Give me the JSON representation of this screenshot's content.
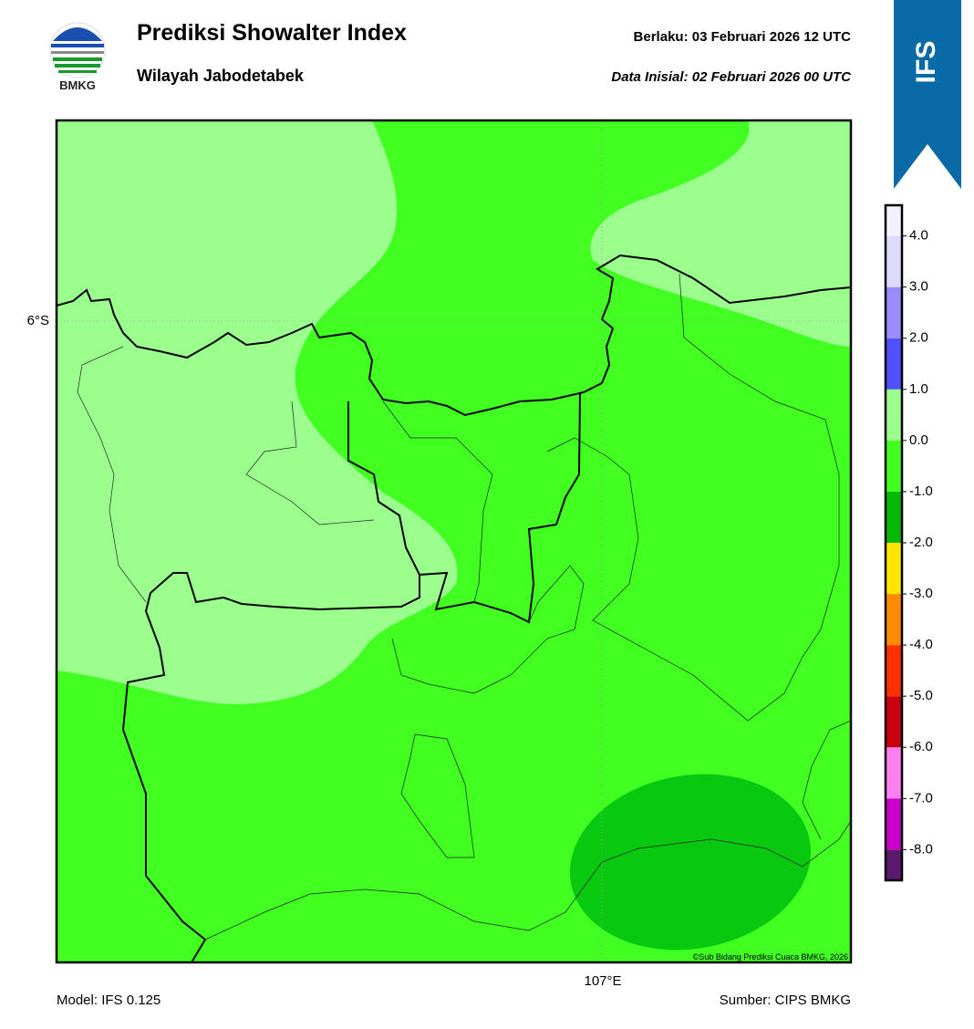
{
  "header": {
    "title": "Prediksi Showalter Index",
    "subtitle": "Wilayah Jabodetabek",
    "valid_label": "Berlaku:  03 Februari 2026 12 UTC",
    "init_label": "Data Inisial:  02 Februari 2026 00 UTC",
    "logo_text": "BMKG",
    "badge": "IFS"
  },
  "map": {
    "lat_label": "6°S",
    "lon_label": "107°E",
    "copyright": "©Sub Bidang Prediksi Cuaca BMKG, 2026"
  },
  "colorbar": {
    "bounds": [
      -8.6,
      -8,
      -7,
      -6,
      -5,
      -4,
      -3,
      -2,
      -1,
      0,
      1,
      2,
      3,
      4,
      4.6
    ],
    "colors": [
      "#5a1a6e",
      "#c800c8",
      "#ff80f0",
      "#c80010",
      "#ff3000",
      "#ff8c00",
      "#ffe600",
      "#08b808",
      "#41ff21",
      "#9bff8e",
      "#5050ff",
      "#9a8cff",
      "#dcdcff",
      "#f2f2ff"
    ],
    "ticks": [
      {
        "value": 4,
        "label": "4.0"
      },
      {
        "value": 3,
        "label": "3.0"
      },
      {
        "value": 2,
        "label": "2.0"
      },
      {
        "value": 1,
        "label": "1.0"
      },
      {
        "value": 0,
        "label": "0.0"
      },
      {
        "value": -1,
        "label": "-1.0"
      },
      {
        "value": -2,
        "label": "-2.0"
      },
      {
        "value": -3,
        "label": "-3.0"
      },
      {
        "value": -4,
        "label": "-4.0"
      },
      {
        "value": -5,
        "label": "-5.0"
      },
      {
        "value": -6,
        "label": "-6.0"
      },
      {
        "value": -7,
        "label": "-7.0"
      },
      {
        "value": -8,
        "label": "-8.0"
      }
    ]
  },
  "footer": {
    "model": "Model: IFS 0.125",
    "source": "Sumber: CIPS BMKG"
  }
}
